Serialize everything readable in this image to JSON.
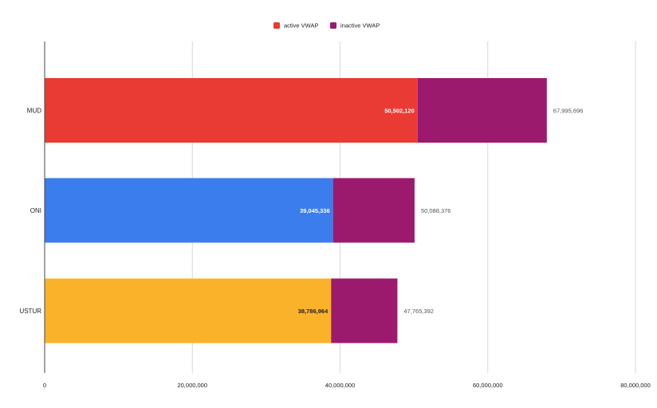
{
  "chart_data": {
    "type": "bar",
    "orientation": "horizontal",
    "stacked": true,
    "title": "",
    "xlabel": "",
    "ylabel": "",
    "xlim": [
      0,
      80000000
    ],
    "grid": true,
    "legend_position": "top-center",
    "x_ticks": [
      {
        "value": 0,
        "label": "0"
      },
      {
        "value": 20000000,
        "label": "20,000,000"
      },
      {
        "value": 40000000,
        "label": "40,000,000"
      },
      {
        "value": 60000000,
        "label": "60,000,000"
      },
      {
        "value": 80000000,
        "label": "80,000,000"
      }
    ],
    "categories": [
      "MUD",
      "ONI",
      "USTUR"
    ],
    "series": [
      {
        "name": "active VWAP",
        "values": [
          50502120,
          39045336,
          38786964
        ],
        "value_labels": [
          "50,502,120",
          "39,045,336",
          "38,786,964"
        ],
        "bar_colors": [
          "#ea3a34",
          "#3b7ded",
          "#fbb22b"
        ],
        "label_colors": [
          "#ffffff",
          "#ffffff",
          "#222222"
        ],
        "legend_color": "#ea3a34"
      },
      {
        "name": "inactive VWAP",
        "values": [
          17493576,
          11043040,
          8978428
        ],
        "color": "#9b1a6e",
        "legend_color": "#9b1a6e"
      }
    ],
    "totals": [
      67995696,
      50088376,
      47765392
    ],
    "total_labels": [
      "67,995,696",
      "50,088,376",
      "47,765,392"
    ],
    "colors": {
      "gridline": "#d9d9d9",
      "axis": "#444444"
    }
  }
}
